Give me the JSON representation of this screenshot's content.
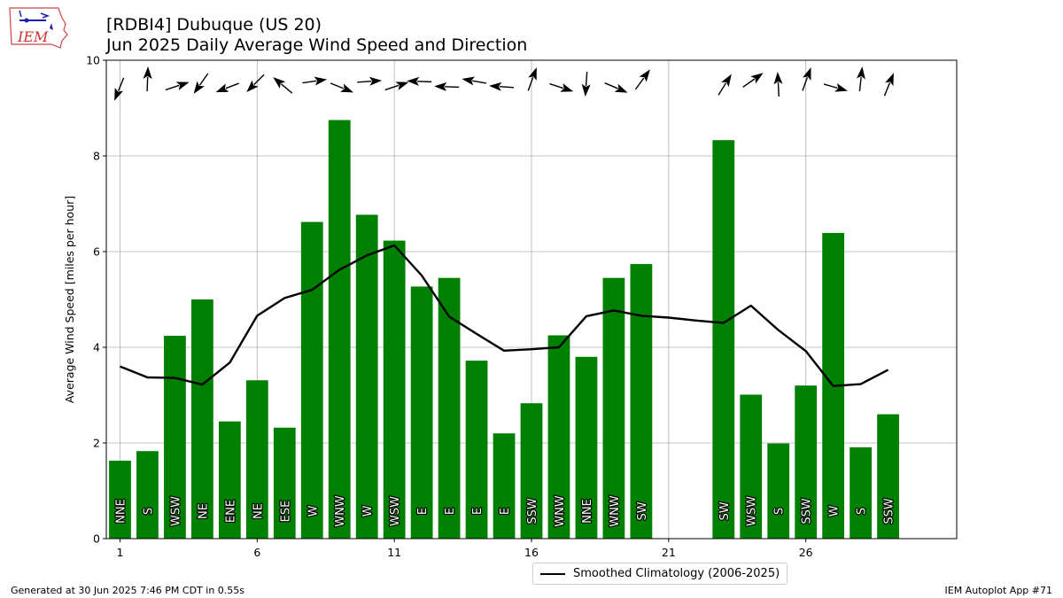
{
  "header": {
    "title_line1": "[RDBI4] Dubuque (US 20)",
    "title_line2": "Jun 2025 Daily Average Wind Speed and Direction",
    "logo_text": "IEM"
  },
  "footer": {
    "generated": "Generated at 30 Jun 2025 7:46 PM CDT in 0.55s",
    "app": "IEM Autoplot App #71"
  },
  "chart_data": {
    "type": "bar",
    "title": "Jun 2025 Daily Average Wind Speed and Direction",
    "xlabel": "",
    "ylabel": "Average Wind Speed [miles per hour]",
    "xlim": [
      0.5,
      31.5
    ],
    "ylim": [
      0,
      10
    ],
    "xticks": [
      1,
      6,
      11,
      16,
      21,
      26
    ],
    "yticks": [
      0,
      2,
      4,
      6,
      8,
      10
    ],
    "grid": true,
    "colors": {
      "bar": "#008000",
      "climatology": "#000000",
      "arrow": "#000000",
      "grid": "#b0b0b0"
    },
    "bars": [
      {
        "day": 1,
        "speed": 1.63,
        "dir": "NNE",
        "arrow_deg": 202
      },
      {
        "day": 2,
        "speed": 1.83,
        "dir": "S",
        "arrow_deg": 2
      },
      {
        "day": 3,
        "speed": 4.24,
        "dir": "WSW",
        "arrow_deg": 72
      },
      {
        "day": 4,
        "speed": 5.0,
        "dir": "NE",
        "arrow_deg": 215
      },
      {
        "day": 5,
        "speed": 2.45,
        "dir": "ENE",
        "arrow_deg": 249
      },
      {
        "day": 6,
        "speed": 3.31,
        "dir": "NE",
        "arrow_deg": 225
      },
      {
        "day": 7,
        "speed": 2.32,
        "dir": "ESE",
        "arrow_deg": 310
      },
      {
        "day": 8,
        "speed": 6.62,
        "dir": "W",
        "arrow_deg": 82
      },
      {
        "day": 9,
        "speed": 8.75,
        "dir": "WNW",
        "arrow_deg": 112
      },
      {
        "day": 10,
        "speed": 6.77,
        "dir": "W",
        "arrow_deg": 86
      },
      {
        "day": 11,
        "speed": 6.23,
        "dir": "WSW",
        "arrow_deg": 72
      },
      {
        "day": 12,
        "speed": 5.27,
        "dir": "E",
        "arrow_deg": 272
      },
      {
        "day": 13,
        "speed": 5.45,
        "dir": "E",
        "arrow_deg": 272
      },
      {
        "day": 14,
        "speed": 3.72,
        "dir": "E",
        "arrow_deg": 280
      },
      {
        "day": 15,
        "speed": 2.2,
        "dir": "E",
        "arrow_deg": 274
      },
      {
        "day": 16,
        "speed": 2.83,
        "dir": "SSW",
        "arrow_deg": 20
      },
      {
        "day": 17,
        "speed": 4.25,
        "dir": "WNW",
        "arrow_deg": 108
      },
      {
        "day": 18,
        "speed": 3.8,
        "dir": "NNE",
        "arrow_deg": 184
      },
      {
        "day": 19,
        "speed": 5.45,
        "dir": "WNW",
        "arrow_deg": 113
      },
      {
        "day": 20,
        "speed": 5.74,
        "dir": "SW",
        "arrow_deg": 36
      },
      {
        "day": 23,
        "speed": 8.33,
        "dir": "SW",
        "arrow_deg": 32
      },
      {
        "day": 24,
        "speed": 3.01,
        "dir": "WSW",
        "arrow_deg": 55
      },
      {
        "day": 25,
        "speed": 1.99,
        "dir": "S",
        "arrow_deg": 357
      },
      {
        "day": 26,
        "speed": 3.2,
        "dir": "SSW",
        "arrow_deg": 20
      },
      {
        "day": 27,
        "speed": 6.39,
        "dir": "W",
        "arrow_deg": 106
      },
      {
        "day": 28,
        "speed": 1.91,
        "dir": "S",
        "arrow_deg": 6
      },
      {
        "day": 29,
        "speed": 2.6,
        "dir": "SSW",
        "arrow_deg": 22
      }
    ],
    "series": [
      {
        "name": "Smoothed Climatology (2006-2025)",
        "x": [
          1,
          2,
          3,
          4,
          5,
          6,
          7,
          8,
          9,
          10,
          11,
          12,
          13,
          14,
          15,
          16,
          17,
          18,
          19,
          20,
          21,
          22,
          23,
          24,
          25,
          26,
          27,
          28,
          29
        ],
        "values": [
          3.6,
          3.37,
          3.36,
          3.22,
          3.68,
          4.66,
          5.03,
          5.2,
          5.62,
          5.92,
          6.13,
          5.5,
          4.64,
          4.28,
          3.93,
          3.96,
          4.0,
          4.65,
          4.77,
          4.66,
          4.62,
          4.56,
          4.51,
          4.87,
          4.36,
          3.92,
          3.19,
          3.23,
          3.53
        ]
      }
    ],
    "legend_location": "below-center"
  }
}
